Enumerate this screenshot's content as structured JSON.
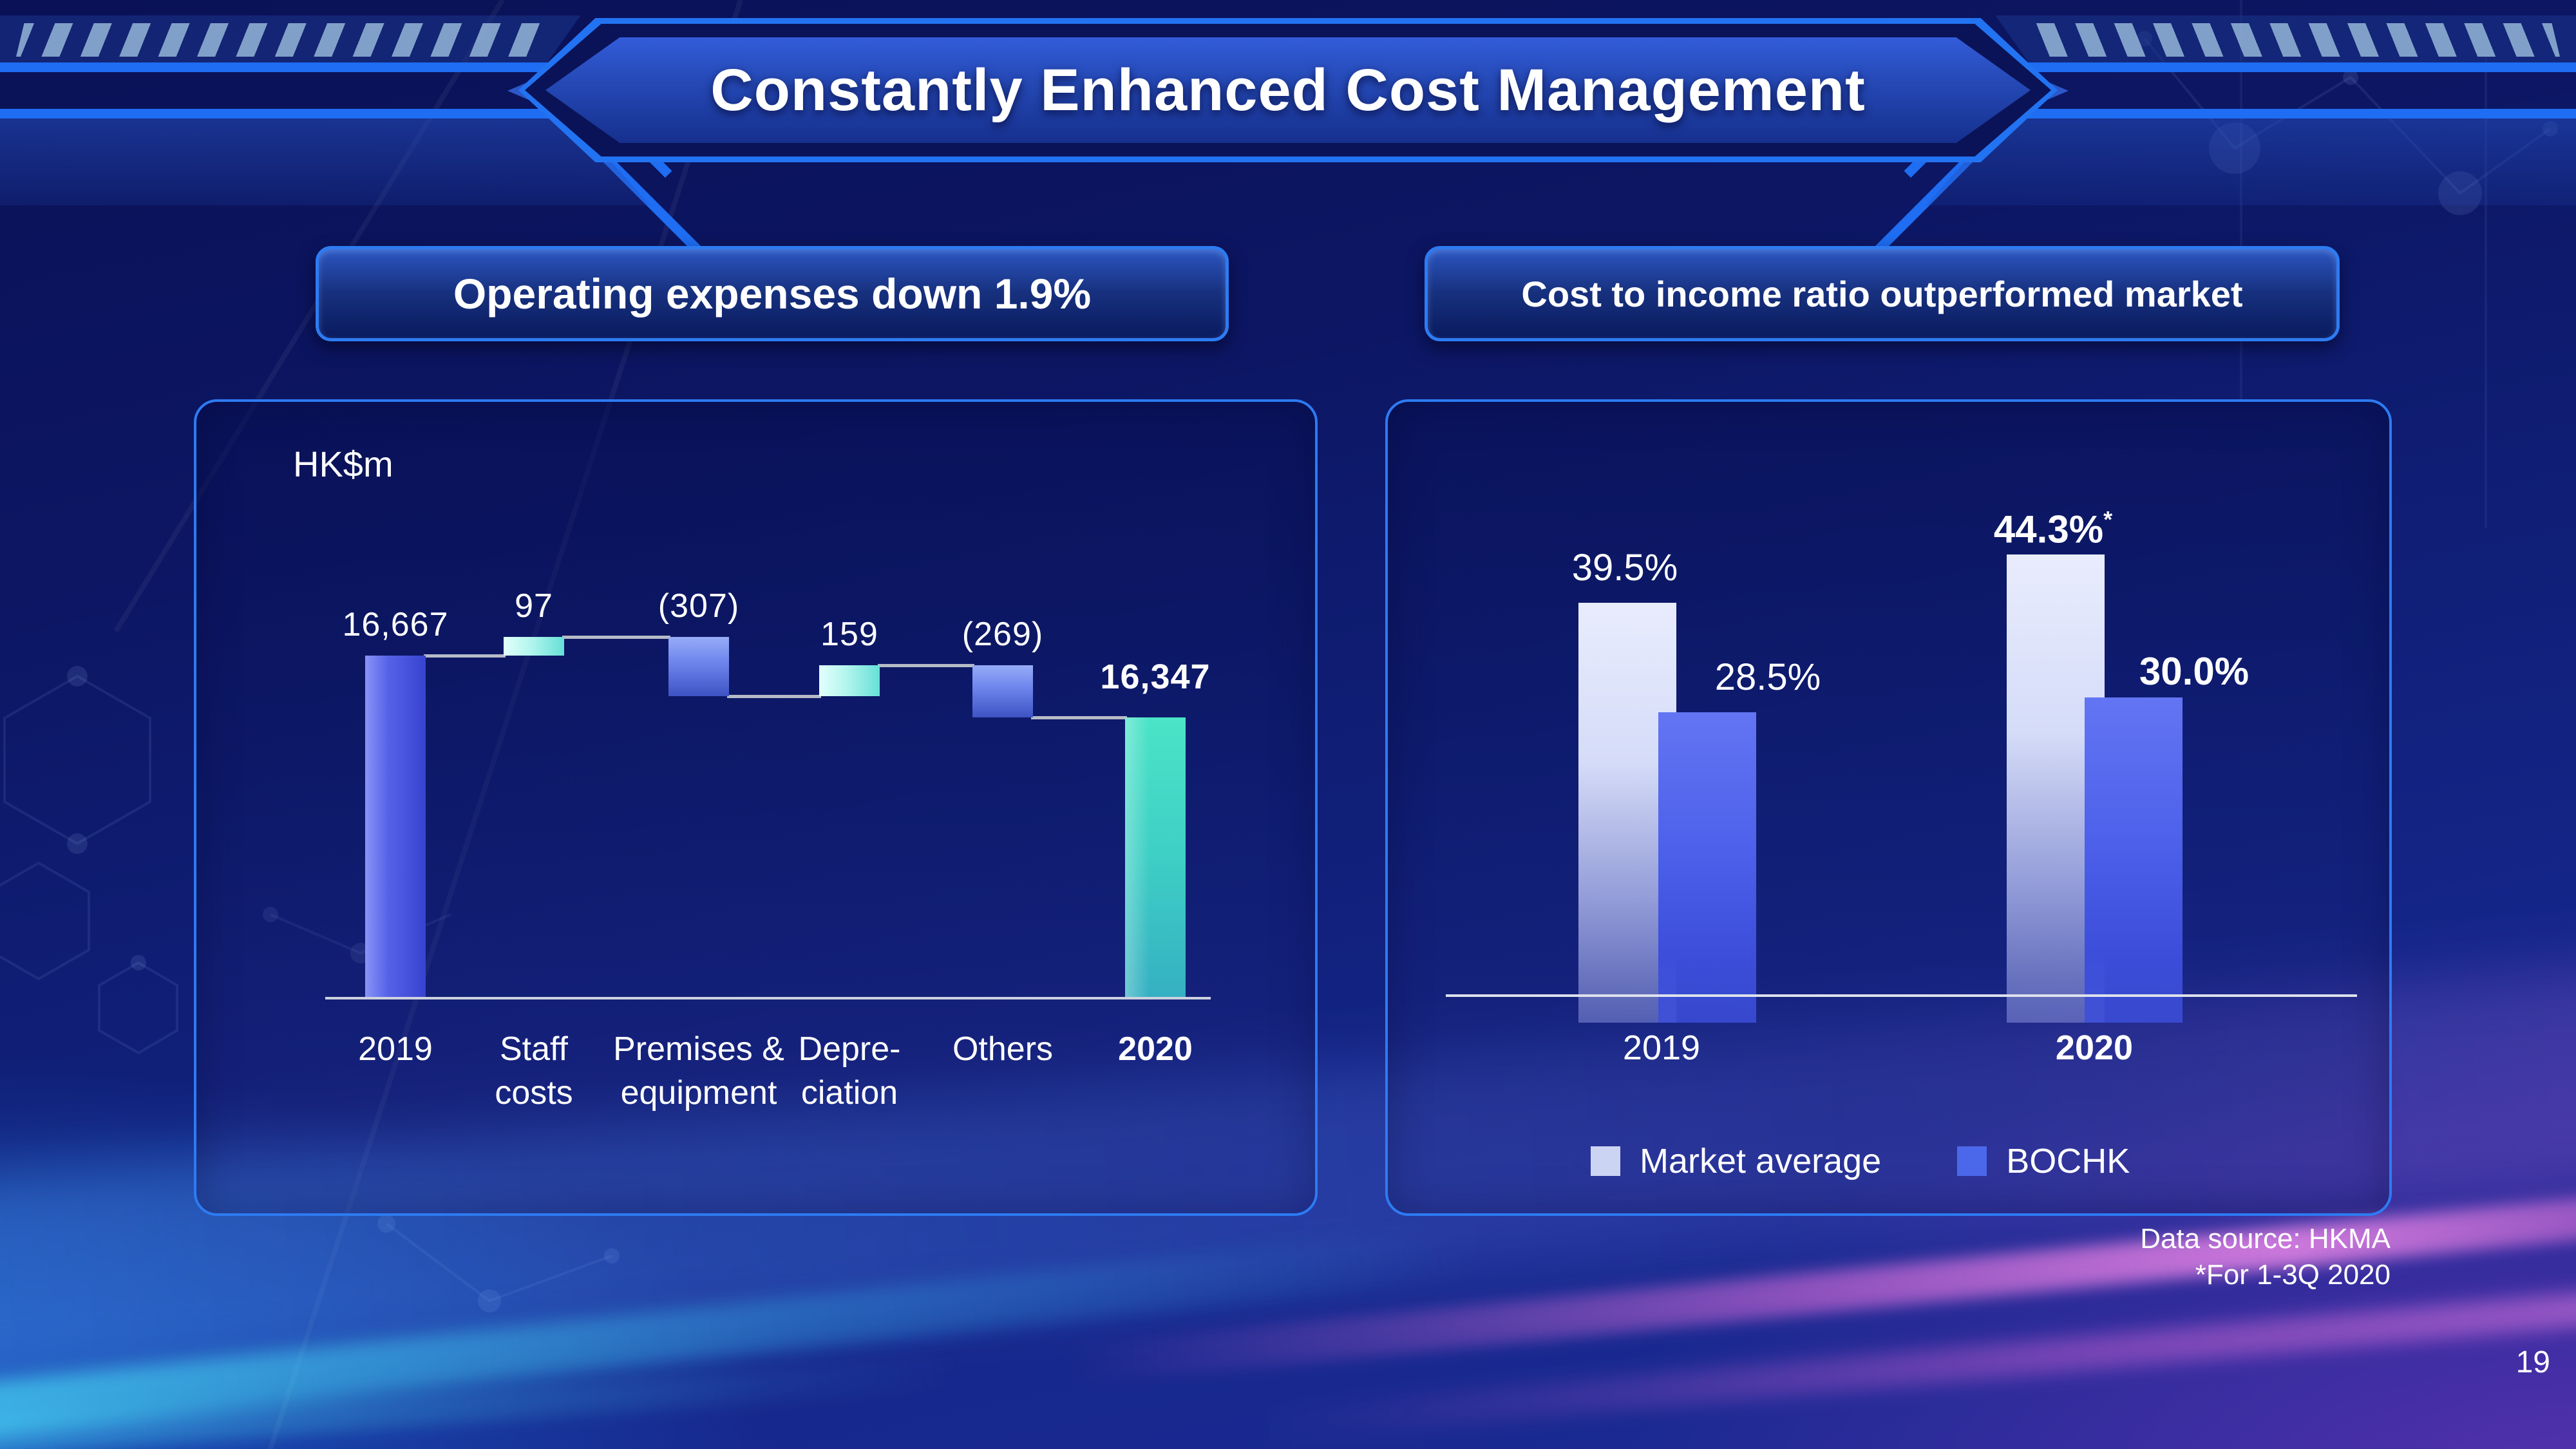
{
  "slide": {
    "title": "Constantly Enhanced Cost Management",
    "page_number": "19",
    "footnote_line1": "Data source: HKMA",
    "footnote_line2": "*For 1-3Q 2020"
  },
  "left_panel": {
    "header": "Operating expenses down 1.9%",
    "unit_label": "HK$m"
  },
  "right_panel": {
    "header": "Cost to income ratio outperformed market",
    "legend": {
      "market_label": "Market average",
      "bochk_label": "BOCHK"
    }
  },
  "colors": {
    "accent_blue": "#1e6df2",
    "waterfall_start_bar": "#5562e8",
    "waterfall_increase_bar": "#b2f5ee",
    "waterfall_decrease_bar": "#7088ee",
    "waterfall_end_bar": "#3ecfc5",
    "market_average_bar": "#d5dcf8",
    "bochk_bar": "#4c60ea"
  },
  "chart_data": [
    {
      "type": "bar",
      "subtype": "waterfall",
      "title": "Operating expenses down 1.9%",
      "unit": "HK$m",
      "categories": [
        "2019",
        "Staff costs",
        "Premises & equipment",
        "Depreciation",
        "Others",
        "2020"
      ],
      "categories_display": [
        [
          "2019"
        ],
        [
          "Staff",
          "costs"
        ],
        [
          "Premises &",
          "equipment"
        ],
        [
          "Depre-",
          "ciation"
        ],
        [
          "Others"
        ],
        [
          "2020"
        ]
      ],
      "values": [
        16667,
        97,
        -307,
        159,
        -269,
        16347
      ],
      "labels": [
        "16,667",
        "97",
        "(307)",
        "159",
        "(269)",
        "16,347"
      ],
      "bar_roles": [
        "total",
        "increase",
        "decrease",
        "increase",
        "decrease",
        "total"
      ],
      "grid": "off",
      "legend_position": "none"
    },
    {
      "type": "bar",
      "subtype": "grouped",
      "title": "Cost to income ratio outperformed market",
      "categories": [
        "2019",
        "2020"
      ],
      "series": [
        {
          "name": "Market average",
          "values": [
            39.5,
            44.3
          ],
          "labels": [
            "39.5%",
            "44.3%"
          ],
          "label_suffixes": [
            "",
            "*"
          ]
        },
        {
          "name": "BOCHK",
          "values": [
            28.5,
            30.0
          ],
          "labels": [
            "28.5%",
            "30.0%"
          ],
          "label_suffixes": [
            "",
            ""
          ]
        }
      ],
      "ylim": [
        0,
        50
      ],
      "grid": "off",
      "legend_position": "bottom"
    }
  ]
}
